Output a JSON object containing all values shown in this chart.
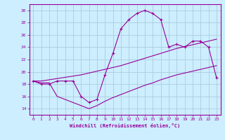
{
  "xlabel": "Windchill (Refroidissement éolien,°C)",
  "bg_color": "#cceeff",
  "grid_color": "#aaccdd",
  "line_color": "#990099",
  "xlim": [
    -0.5,
    23.5
  ],
  "ylim": [
    13.0,
    31.0
  ],
  "xticks": [
    0,
    1,
    2,
    3,
    4,
    5,
    6,
    7,
    8,
    9,
    10,
    11,
    12,
    13,
    14,
    15,
    16,
    17,
    18,
    19,
    20,
    21,
    22,
    23
  ],
  "yticks": [
    14,
    16,
    18,
    20,
    22,
    24,
    26,
    28,
    30
  ],
  "line1_x": [
    0,
    1,
    2,
    3,
    4,
    5,
    6,
    7,
    8,
    9,
    10,
    11,
    12,
    13,
    14,
    15,
    16,
    17,
    18,
    19,
    20,
    21,
    22,
    23
  ],
  "line1_y": [
    18.5,
    18,
    18,
    18.5,
    18.5,
    18.5,
    16,
    15,
    15.5,
    19.5,
    23,
    27,
    28.5,
    29.5,
    30,
    29.5,
    28.5,
    24,
    24.5,
    24,
    25,
    25,
    24,
    19
  ],
  "line2_x": [
    0,
    1,
    2,
    3,
    4,
    5,
    6,
    7,
    8,
    9,
    10,
    11,
    12,
    13,
    14,
    15,
    16,
    17,
    18,
    19,
    20,
    21,
    22,
    23
  ],
  "line2_y": [
    18.5,
    18.5,
    18.7,
    18.9,
    19.1,
    19.3,
    19.5,
    19.8,
    20.1,
    20.4,
    20.7,
    21.0,
    21.4,
    21.8,
    22.2,
    22.6,
    23.0,
    23.4,
    23.8,
    24.1,
    24.4,
    24.7,
    25.0,
    25.3
  ],
  "line3_x": [
    0,
    1,
    2,
    3,
    4,
    5,
    6,
    7,
    8,
    9,
    10,
    11,
    12,
    13,
    14,
    15,
    16,
    17,
    18,
    19,
    20,
    21,
    22,
    23
  ],
  "line3_y": [
    18.5,
    18.2,
    18.2,
    16,
    15.5,
    15,
    14.5,
    14,
    14.5,
    15.2,
    15.8,
    16.3,
    16.8,
    17.3,
    17.8,
    18.2,
    18.7,
    19.1,
    19.5,
    19.8,
    20.1,
    20.4,
    20.7,
    21.0
  ]
}
